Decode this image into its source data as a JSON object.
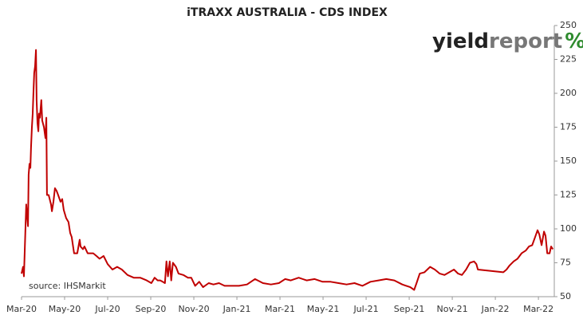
{
  "chart_data": {
    "type": "line",
    "title": "iTRAXX AUSTRALIA - CDS INDEX",
    "logo": {
      "yield": "yield",
      "report": "report",
      "symbol": "%"
    },
    "source": "source: IHSMarkit",
    "series": [
      {
        "name": "iTraxx Australia",
        "color": "#c00000",
        "x": [
          0,
          0.07,
          0.11,
          0.18,
          0.22,
          0.3,
          0.33,
          0.37,
          0.41,
          0.44,
          0.48,
          0.52,
          0.55,
          0.59,
          0.63,
          0.67,
          0.7,
          0.74,
          0.78,
          0.81,
          0.85,
          0.92,
          0.96,
          1.04,
          1.11,
          1.15,
          1.18,
          1.26,
          1.37,
          1.41,
          1.48,
          1.55,
          1.63,
          1.7,
          1.81,
          1.89,
          1.96,
          2.07,
          2.18,
          2.26,
          2.33,
          2.44,
          2.51,
          2.59,
          2.7,
          2.74,
          2.85,
          2.92,
          3.07,
          3.18,
          3.33,
          3.48,
          3.62,
          3.81,
          4.0,
          4.22,
          4.44,
          4.66,
          4.92,
          5.21,
          5.51,
          5.81,
          6.03,
          6.18,
          6.32,
          6.44,
          6.55,
          6.66,
          6.73,
          6.8,
          6.88,
          6.95,
          7.03,
          7.17,
          7.29,
          7.51,
          7.73,
          7.88,
          8.06,
          8.25,
          8.43,
          8.69,
          8.91,
          9.17,
          9.43,
          9.72,
          10.1,
          10.47,
          10.84,
          11.21,
          11.58,
          11.95,
          12.24,
          12.5,
          12.87,
          13.24,
          13.61,
          13.98,
          14.35,
          14.72,
          15.09,
          15.46,
          15.83,
          16.2,
          16.57,
          16.94,
          17.31,
          17.68,
          18.05,
          18.23,
          18.34,
          18.49,
          18.71,
          18.97,
          19.19,
          19.42,
          19.64,
          19.86,
          20.08,
          20.27,
          20.45,
          20.64,
          20.82,
          21.01,
          21.12,
          21.19,
          22.37,
          22.52,
          22.66,
          22.85,
          23.03,
          23.22,
          23.41,
          23.56,
          23.71,
          23.85,
          23.96,
          24.04,
          24.15,
          24.26,
          24.33,
          24.41,
          24.52,
          24.59,
          24.67
        ],
        "values": [
          67,
          72,
          65,
          100,
          118,
          102,
          140,
          148,
          145,
          160,
          175,
          185,
          200,
          215,
          220,
          232,
          195,
          178,
          172,
          185,
          182,
          195,
          180,
          175,
          167,
          182,
          125,
          125,
          118,
          113,
          120,
          130,
          128,
          125,
          120,
          122,
          114,
          108,
          105,
          97,
          94,
          82,
          82,
          82,
          92,
          87,
          85,
          87,
          82,
          82,
          82,
          80,
          78,
          80,
          74,
          70,
          72,
          70,
          66,
          64,
          64,
          62,
          60,
          64,
          62,
          62,
          61,
          60,
          76,
          65,
          76,
          62,
          75,
          72,
          67,
          66,
          64,
          64,
          58,
          61,
          57,
          60,
          59,
          60,
          58,
          58,
          58,
          59,
          63,
          60,
          59,
          60,
          63,
          62,
          64,
          62,
          63,
          61,
          61,
          60,
          59,
          60,
          58,
          61,
          62,
          63,
          62,
          59,
          57,
          55,
          60,
          67,
          68,
          72,
          70,
          67,
          66,
          68,
          70,
          67,
          66,
          70,
          75,
          76,
          74,
          70,
          68,
          70,
          73,
          76,
          78,
          82,
          84,
          87,
          88,
          94,
          99,
          96,
          88,
          98,
          95,
          82,
          82,
          87,
          85
        ]
      }
    ],
    "xlim": [
      0,
      24.7
    ],
    "xticks": [
      {
        "value": 0,
        "label": "Mar-20"
      },
      {
        "value": 2,
        "label": "May-20"
      },
      {
        "value": 4,
        "label": "Jul-20"
      },
      {
        "value": 6,
        "label": "Sep-20"
      },
      {
        "value": 8,
        "label": "Nov-20"
      },
      {
        "value": 10,
        "label": "Jan-21"
      },
      {
        "value": 12,
        "label": "Mar-21"
      },
      {
        "value": 14,
        "label": "May-21"
      },
      {
        "value": 16,
        "label": "Jul-21"
      },
      {
        "value": 18,
        "label": "Sep-21"
      },
      {
        "value": 20,
        "label": "Nov-21"
      },
      {
        "value": 22,
        "label": "Jan-22"
      },
      {
        "value": 24,
        "label": "Mar-22"
      }
    ],
    "ylim": [
      50,
      250
    ],
    "yticks": [
      50,
      75,
      100,
      125,
      150,
      175,
      200,
      225,
      250
    ],
    "grid": false
  }
}
